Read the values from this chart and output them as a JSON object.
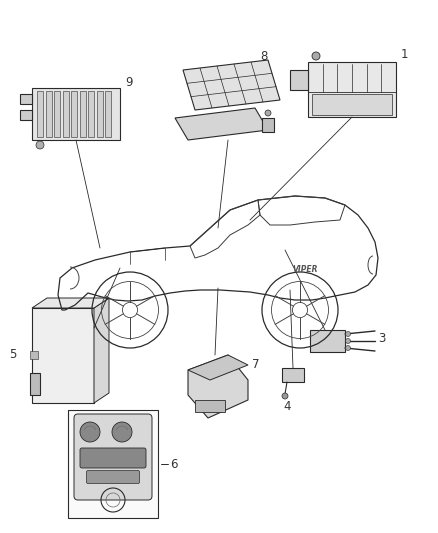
{
  "background_color": "#ffffff",
  "fig_width": 4.38,
  "fig_height": 5.33,
  "dpi": 100,
  "line_color": "#2a2a2a",
  "label_fontsize": 8.5
}
